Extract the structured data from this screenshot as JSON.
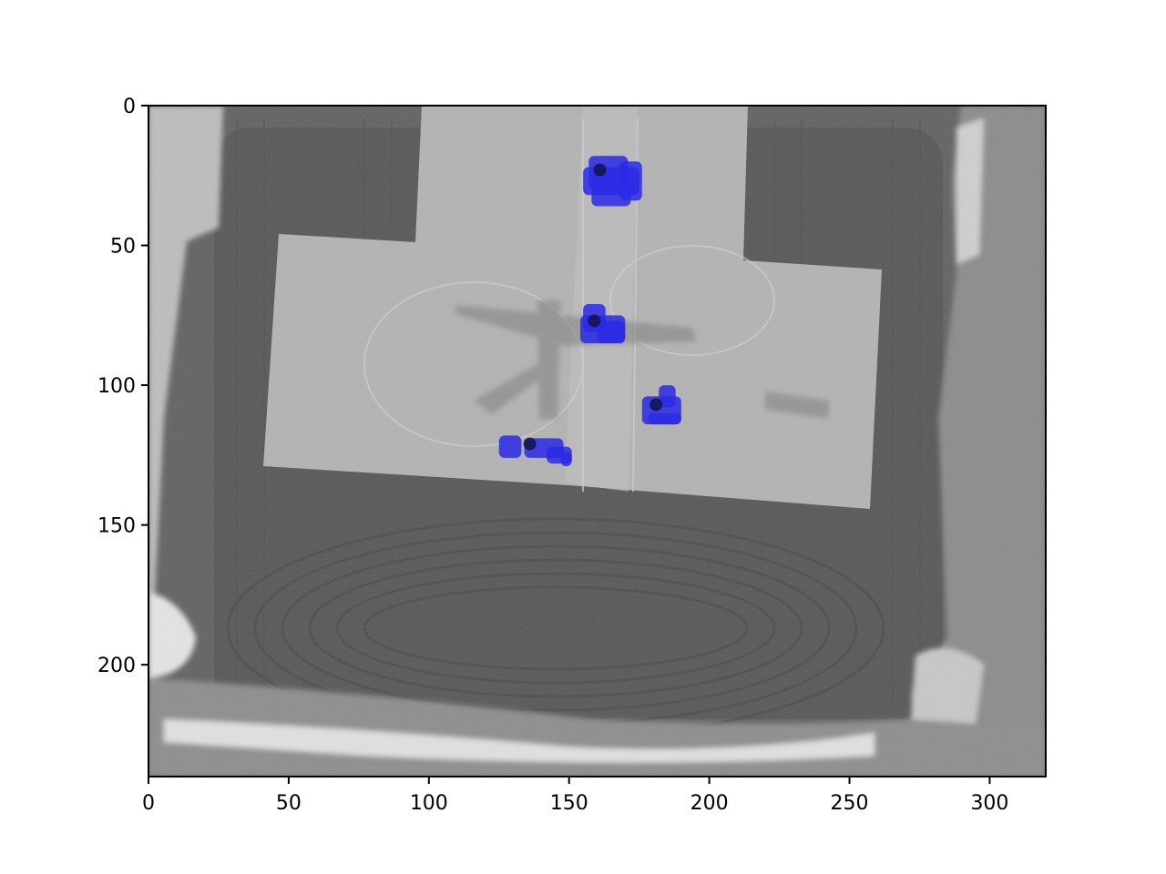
{
  "image": {
    "description_kind": "aerial grayscale image with blue detection overlays",
    "x_range": [
      0,
      320
    ],
    "y_range": [
      0,
      240
    ],
    "y_inverted": true
  },
  "axes": {
    "x_ticks": [
      0,
      50,
      100,
      150,
      200,
      250,
      300
    ],
    "y_ticks": [
      0,
      50,
      100,
      150,
      200
    ]
  },
  "detections": [
    {
      "name": "detection-1",
      "cx": 162,
      "cy": 23
    },
    {
      "name": "detection-2",
      "cx": 160,
      "cy": 77
    },
    {
      "name": "detection-3",
      "cx": 182,
      "cy": 107
    },
    {
      "name": "detection-4",
      "cx": 137,
      "cy": 121
    }
  ],
  "colors": {
    "overlay": "#2a2ae6",
    "background": "#5e5e5e",
    "pad": "#b4b4b4"
  }
}
